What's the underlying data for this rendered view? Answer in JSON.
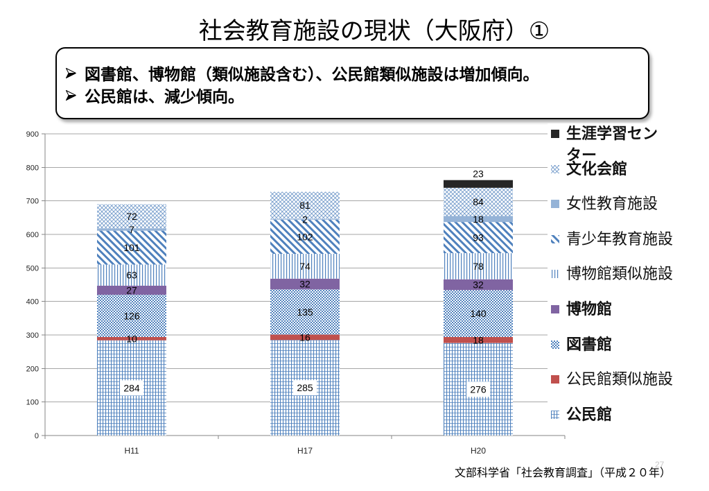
{
  "slide": {
    "title": "社会教育施設の現状（大阪府）①",
    "summary_box": {
      "bullets": [
        "図書館、博物館（類似施設含む）、公民館類似施設は増加傾向。",
        "公民館は、減少傾向。"
      ]
    },
    "source": "文部科学省「社会教育調査」（平成２０年）",
    "page_number": "27"
  },
  "chart_data": {
    "type": "bar",
    "stacked": true,
    "categories": [
      "H11",
      "H17",
      "H20"
    ],
    "ylim": [
      0,
      900
    ],
    "y_ticks": [
      0,
      100,
      200,
      300,
      400,
      500,
      600,
      700,
      800,
      900
    ],
    "grid": true,
    "legend_position": "right",
    "series": [
      {
        "name": "公民館",
        "values": [
          284,
          285,
          276
        ],
        "color": "#4F81BD"
      },
      {
        "name": "公民館類似施設",
        "values": [
          10,
          16,
          18
        ],
        "color": "#C0504D"
      },
      {
        "name": "図書館",
        "values": [
          126,
          135,
          140
        ],
        "color": "#4F81BD"
      },
      {
        "name": "博物館",
        "values": [
          27,
          32,
          32
        ],
        "color": "#8064A2"
      },
      {
        "name": "博物館類似施設",
        "values": [
          63,
          74,
          78
        ],
        "color": "#4F81BD"
      },
      {
        "name": "青少年教育施設",
        "values": [
          101,
          102,
          93
        ],
        "color": "#4F81BD"
      },
      {
        "name": "女性教育施設",
        "values": [
          7,
          2,
          18
        ],
        "color": "#95B3D7"
      },
      {
        "name": "文化会館",
        "values": [
          72,
          81,
          84
        ],
        "color": "#4F81BD"
      },
      {
        "name": "生涯学習センター",
        "values": [
          null,
          null,
          23
        ],
        "color": "#262626"
      }
    ]
  }
}
